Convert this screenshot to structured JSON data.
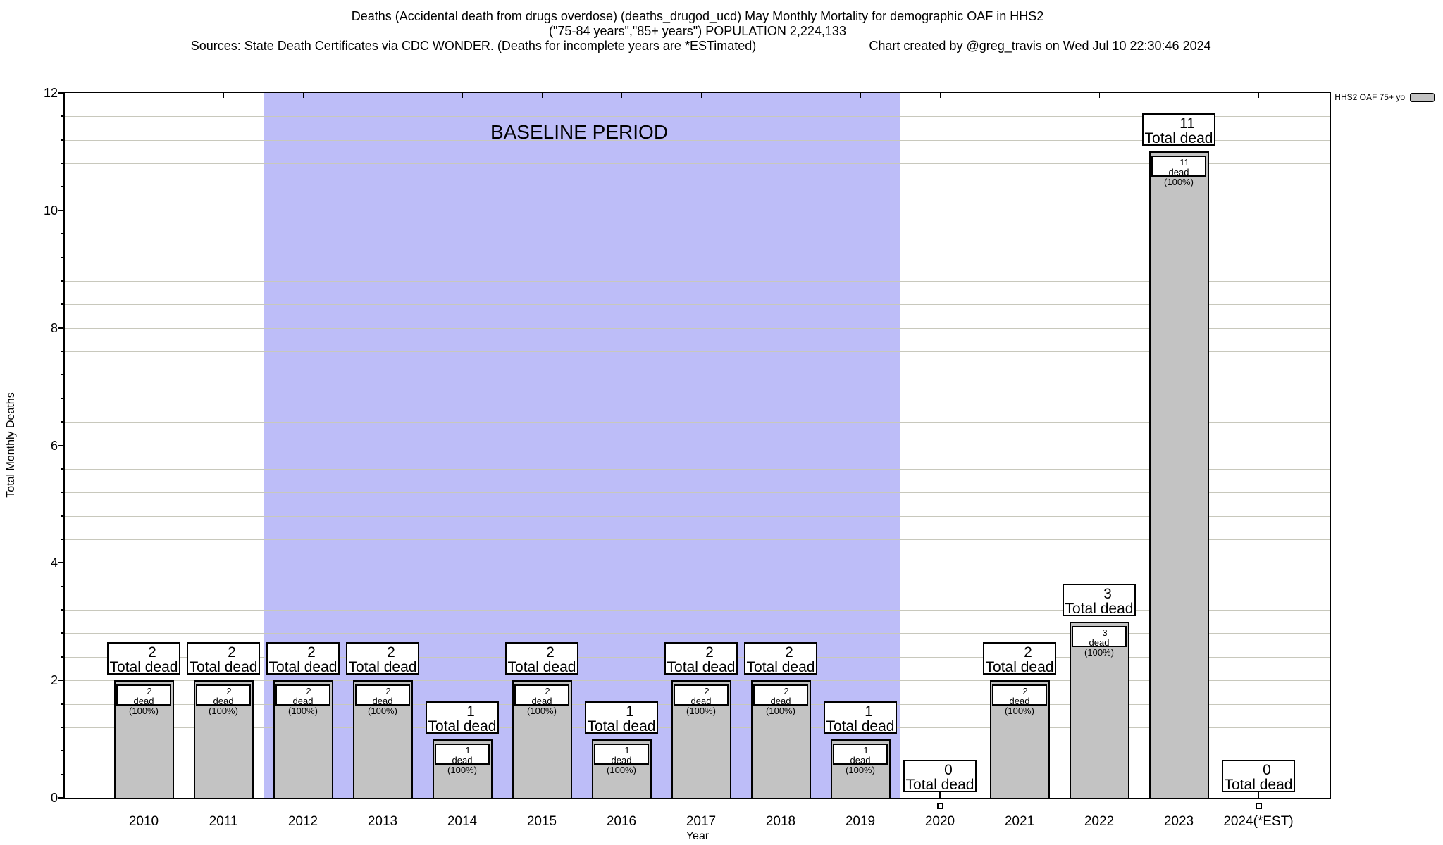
{
  "title": {
    "line1": "Deaths (Accidental death from drugs overdose) (deaths_drugod_ucd) May Monthly Mortality for demographic OAF in HHS2",
    "line2": "(\"75-84 years\",\"85+ years\") POPULATION 2,224,133",
    "line3_left": "Sources: State Death Certificates via CDC WONDER. (Deaths for incomplete years are *ESTimated)",
    "line3_right": "Chart created by @greg_travis on Wed Jul 10 22:30:46 2024"
  },
  "legend": {
    "label": "HHS2 OAF 75+ yo",
    "swatch_color": "#c3c3c3"
  },
  "axes": {
    "y_label": "Total Monthly Deaths",
    "x_label": "Year",
    "y_ticks": [
      0,
      2,
      4,
      6,
      8,
      10,
      12
    ],
    "y_minor_step": 0.4,
    "y_max": 12
  },
  "baseline": {
    "label": "BASELINE PERIOD",
    "start_year": 2012,
    "end_year": 2019,
    "band_color": "#bdbdf8"
  },
  "chart_data": {
    "type": "bar",
    "title": "Deaths (Accidental death from drugs overdose) (deaths_drugod_ucd) May Monthly Mortality for demographic OAF in HHS2",
    "xlabel": "Year",
    "ylabel": "Total Monthly Deaths",
    "ylim": [
      0,
      12
    ],
    "grid": "horizontal, minor step 0.4",
    "legend_position": "top-right outside",
    "categories": [
      "2010",
      "2011",
      "2012",
      "2013",
      "2014",
      "2015",
      "2016",
      "2017",
      "2018",
      "2019",
      "2020",
      "2021",
      "2022",
      "2023",
      "2024(*EST)"
    ],
    "series": [
      {
        "name": "HHS2 OAF 75+ yo",
        "values": [
          2,
          2,
          2,
          2,
          1,
          2,
          1,
          2,
          2,
          1,
          0,
          2,
          3,
          11,
          0
        ]
      }
    ],
    "bar_color": "#c3c3c3",
    "bar_top_label_suffix": "Total dead",
    "bar_inner_label_suffix": "dead (100%)"
  }
}
